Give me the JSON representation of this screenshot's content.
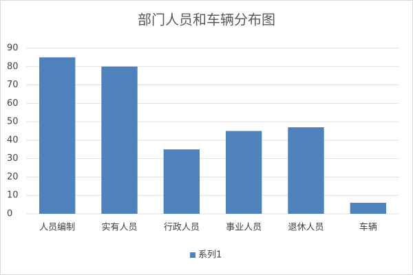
{
  "chart_data": {
    "type": "bar",
    "title": "部门人员和车辆分布图",
    "categories": [
      "人员编制",
      "实有人员",
      "行政人员",
      "事业人员",
      "退休人员",
      "车辆"
    ],
    "series": [
      {
        "name": "系列1",
        "color": "#4f81bd",
        "values": [
          85,
          80,
          35,
          45,
          47,
          6
        ]
      }
    ],
    "ylim": [
      0,
      90
    ],
    "yticks": [
      0,
      10,
      20,
      30,
      40,
      50,
      60,
      70,
      80,
      90
    ],
    "grid": true,
    "legend": "bottom"
  }
}
